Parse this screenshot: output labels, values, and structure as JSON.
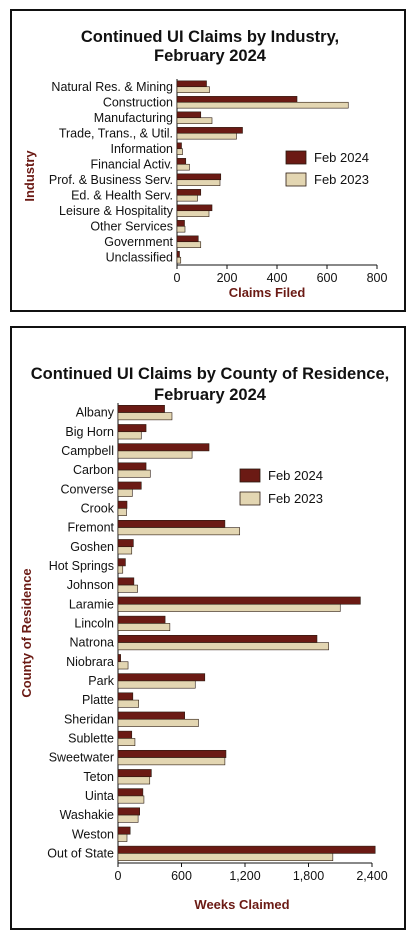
{
  "colors": {
    "feb2024": "#6b1a14",
    "feb2023": "#e3d6b2",
    "bar_stroke": "#2a1a10",
    "axis_title": "#6b1a14"
  },
  "chart_data": [
    {
      "type": "bar",
      "orientation": "horizontal",
      "title": [
        "Continued UI Claims by Industry,",
        "February 2024"
      ],
      "xlabel": "Claims Filed",
      "ylabel": "Industry",
      "xlim": [
        0,
        800
      ],
      "xticks": [
        "0",
        "200",
        "400",
        "600",
        "800"
      ],
      "grid": false,
      "legend_position": "right",
      "categories": [
        "Natural Res. & Mining",
        "Construction",
        "Manufacturing",
        "Trade, Trans., & Util.",
        "Information",
        "Financial Activ.",
        "Prof. & Business Serv.",
        "Ed. & Health Serv.",
        "Leisure & Hospitality",
        "Other Services",
        "Government",
        "Unclassified"
      ],
      "series": [
        {
          "name": "Feb 2024",
          "values": [
            118,
            480,
            95,
            262,
            18,
            35,
            175,
            95,
            140,
            30,
            85,
            10
          ]
        },
        {
          "name": "Feb 2023",
          "values": [
            130,
            685,
            140,
            238,
            22,
            50,
            172,
            82,
            128,
            32,
            95,
            15
          ]
        }
      ]
    },
    {
      "type": "bar",
      "orientation": "horizontal",
      "title": [
        "Continued UI Claims by County of Residence,",
        "February 2024"
      ],
      "xlabel": "Weeks Claimed",
      "ylabel": "County of Residence",
      "xlim": [
        0,
        2400
      ],
      "xticks": [
        "0",
        "600",
        "1,200",
        "1,800",
        "2,400"
      ],
      "grid": false,
      "legend_position": "upper-right",
      "categories": [
        "Albany",
        "Big Horn",
        "Campbell",
        "Carbon",
        "Converse",
        "Crook",
        "Fremont",
        "Goshen",
        "Hot Springs",
        "Johnson",
        "Laramie",
        "Lincoln",
        "Natrona",
        "Niobrara",
        "Park",
        "Platte",
        "Sheridan",
        "Sublette",
        "Sweetwater",
        "Teton",
        "Uinta",
        "Washakie",
        "Weston",
        "Out of State"
      ],
      "series": [
        {
          "name": "Feb 2024",
          "values": [
            440,
            265,
            860,
            265,
            220,
            85,
            1010,
            145,
            70,
            150,
            2290,
            445,
            1880,
            25,
            820,
            140,
            630,
            130,
            1020,
            315,
            235,
            205,
            115,
            2430
          ]
        },
        {
          "name": "Feb 2023",
          "values": [
            510,
            220,
            700,
            305,
            135,
            80,
            1150,
            130,
            45,
            185,
            2100,
            490,
            1990,
            95,
            730,
            195,
            760,
            160,
            1010,
            300,
            245,
            190,
            85,
            2030
          ]
        }
      ]
    }
  ]
}
